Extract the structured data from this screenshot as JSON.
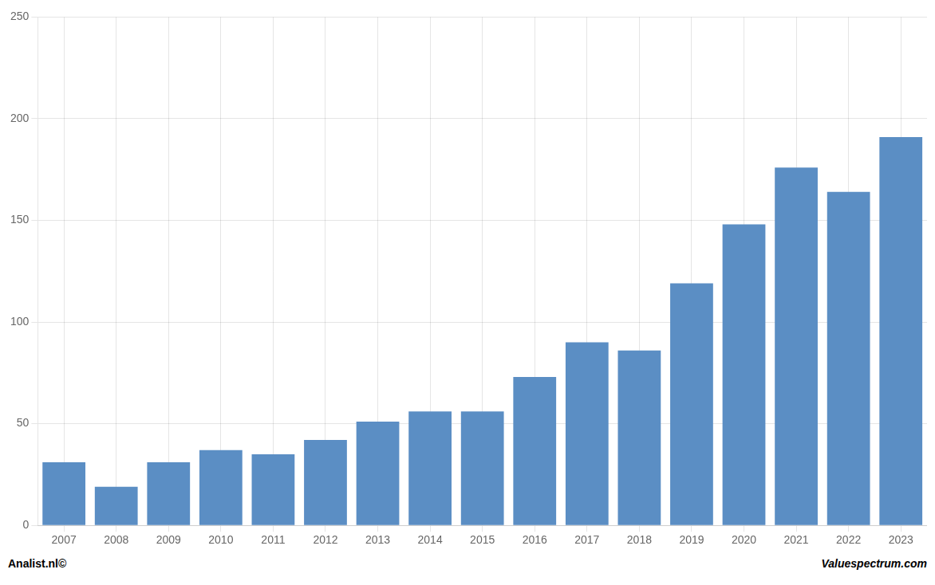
{
  "chart_data": {
    "type": "bar",
    "categories": [
      "2007",
      "2008",
      "2009",
      "2010",
      "2011",
      "2012",
      "2013",
      "2014",
      "2015",
      "2016",
      "2017",
      "2018",
      "2019",
      "2020",
      "2021",
      "2022",
      "2023"
    ],
    "values": [
      31,
      19,
      31,
      37,
      35,
      42,
      51,
      56,
      56,
      73,
      90,
      86,
      119,
      148,
      176,
      164,
      191
    ],
    "color": "#5b8ec4",
    "ylim": [
      0,
      250
    ],
    "yticks": [
      0,
      50,
      100,
      150,
      200,
      250
    ],
    "grid": true,
    "annotations": [
      "Analist.nl©",
      "Valuespectrum.com"
    ]
  }
}
